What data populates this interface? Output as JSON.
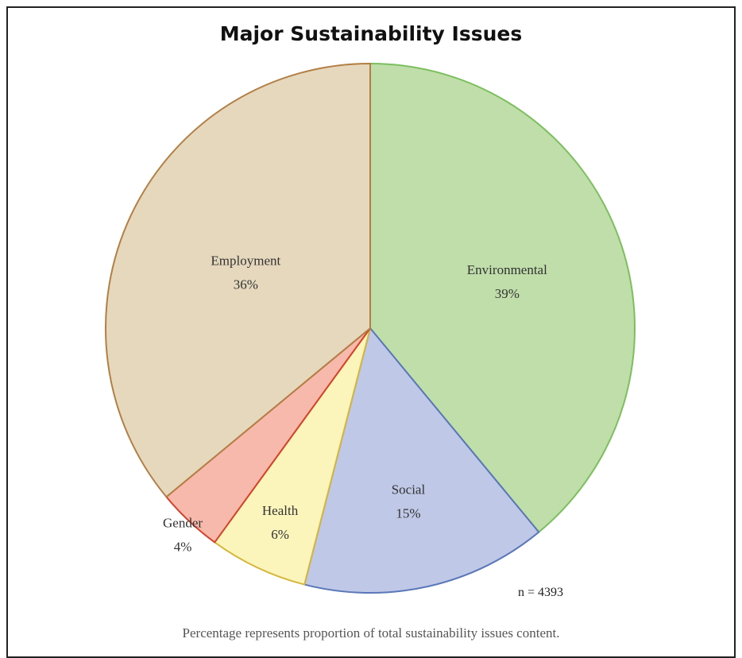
{
  "chart_data": {
    "type": "pie",
    "title": "Major Sustainability Issues",
    "slices": [
      {
        "label": "Environmental",
        "value": 39,
        "value_label": "39%",
        "fill": "#bfdeaa",
        "stroke": "#7cbf5e"
      },
      {
        "label": "Social",
        "value": 15,
        "value_label": "15%",
        "fill": "#bfc8e6",
        "stroke": "#5a77b8"
      },
      {
        "label": "Health",
        "value": 6,
        "value_label": "6%",
        "fill": "#fbf4bb",
        "stroke": "#d6b73c"
      },
      {
        "label": "Gender",
        "value": 4,
        "value_label": "4%",
        "fill": "#f6b9ab",
        "stroke": "#d2432b"
      },
      {
        "label": "Employment",
        "value": 36,
        "value_label": "36%",
        "fill": "#e6d8bd",
        "stroke": "#b37f45"
      }
    ],
    "annotations": [
      "n = 4393"
    ],
    "footnote": "Percentage represents proportion of total sustainability issues content."
  }
}
